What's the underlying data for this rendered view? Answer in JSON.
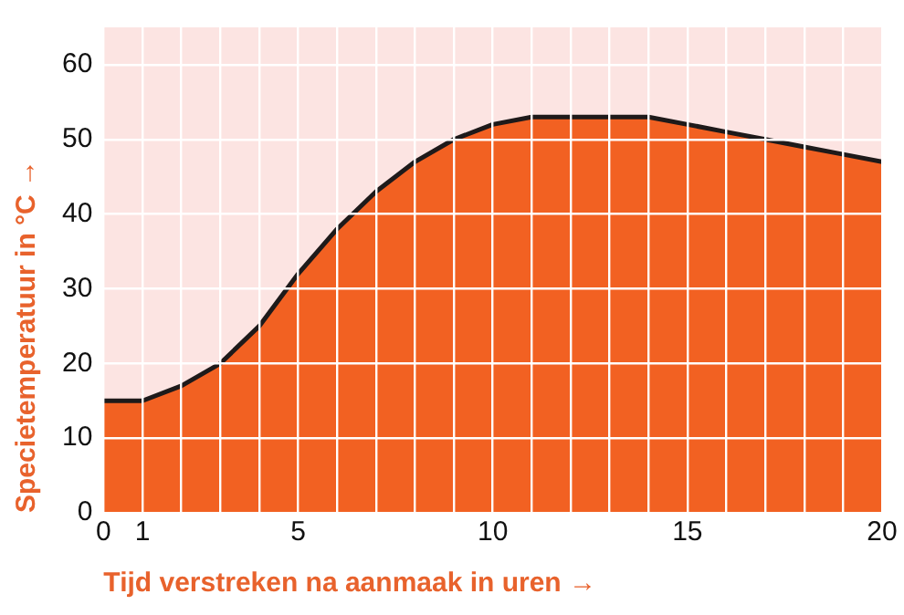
{
  "chart_data": {
    "type": "area",
    "xlabel": "Tijd verstreken na aanmaak in uren →",
    "ylabel": "Specietemperatuur in °C →",
    "x": [
      0,
      1,
      2,
      3,
      4,
      5,
      6,
      7,
      8,
      9,
      10,
      11,
      12,
      13,
      14,
      15,
      16,
      17,
      18,
      19,
      20
    ],
    "series": [
      {
        "color": "#f26122",
        "values": [
          15,
          15,
          17,
          20,
          25,
          32,
          38,
          43,
          47,
          50,
          52,
          53,
          53,
          53,
          53,
          52,
          51,
          50,
          49,
          48,
          47
        ]
      }
    ],
    "xlim": [
      0,
      20
    ],
    "xticks": [
      0,
      1,
      {
        "value": 2,
        "label": null
      },
      {
        "value": 3,
        "label": null
      },
      {
        "value": 4,
        "label": null
      },
      5,
      {
        "value": 6,
        "label": null
      },
      {
        "value": 7,
        "label": null
      },
      {
        "value": 8,
        "label": null
      },
      {
        "value": 9,
        "label": null
      },
      10,
      {
        "value": 11,
        "label": null
      },
      {
        "value": 12,
        "label": null
      },
      {
        "value": 13,
        "label": null
      },
      {
        "value": 14,
        "label": null
      },
      15,
      {
        "value": 16,
        "label": null
      },
      {
        "value": 17,
        "label": null
      },
      {
        "value": 18,
        "label": null
      },
      {
        "value": 19,
        "label": null
      },
      20
    ],
    "ylim": [
      0,
      65
    ],
    "yticks": [
      0,
      10,
      20,
      30,
      40,
      50,
      60
    ],
    "grid": true,
    "legend": false,
    "marker": "none",
    "line_style": "solid"
  }
}
